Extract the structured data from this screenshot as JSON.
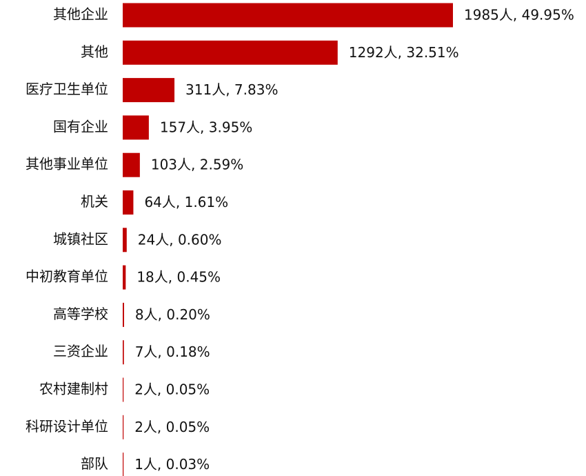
{
  "chart_data": {
    "type": "bar",
    "orientation": "horizontal",
    "color": "#c00000",
    "categories": [
      "其他企业",
      "其他",
      "医疗卫生单位",
      "国有企业",
      "其他事业单位",
      "机关",
      "城镇社区",
      "中初教育单位",
      "高等学校",
      "三资企业",
      "农村建制村",
      "科研设计单位",
      "部队"
    ],
    "values": [
      1985,
      1292,
      311,
      157,
      103,
      64,
      24,
      18,
      8,
      7,
      2,
      2,
      1
    ],
    "value_labels": [
      "1985人, 49.95%",
      "1292人, 32.51%",
      "311人, 7.83%",
      "157人, 3.95%",
      "103人, 2.59%",
      "64人, 1.61%",
      "24人, 0.60%",
      "18人, 0.45%",
      "8人, 0.20%",
      "7人, 0.18%",
      "2人, 0.05%",
      "2人, 0.05%",
      "1人, 0.03%"
    ]
  }
}
